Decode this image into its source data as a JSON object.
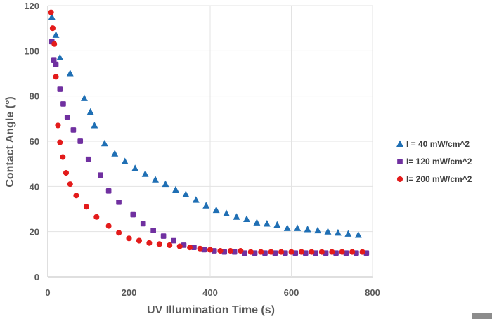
{
  "chart_data": {
    "type": "scatter",
    "title": "",
    "xlabel": "UV Illumination Time (s)",
    "ylabel": "Contact Angle (°)",
    "xlim": [
      0,
      800
    ],
    "ylim": [
      0,
      120
    ],
    "xticks": [
      0,
      200,
      400,
      600,
      800
    ],
    "yticks": [
      0,
      20,
      40,
      60,
      80,
      100,
      120
    ],
    "grid": true,
    "legend_position": "right",
    "series": [
      {
        "name": "I = 40 mW/cm^2",
        "marker": "triangle",
        "color": "#1f6fb4",
        "x": [
          10,
          20,
          30,
          55,
          90,
          105,
          115,
          140,
          165,
          190,
          215,
          240,
          265,
          290,
          315,
          340,
          365,
          390,
          415,
          440,
          465,
          490,
          515,
          540,
          565,
          590,
          615,
          640,
          665,
          690,
          715,
          740,
          765
        ],
        "y": [
          115,
          107,
          97,
          90,
          79,
          73,
          67,
          59,
          54.5,
          51,
          48,
          45.5,
          43,
          41,
          38.5,
          36.5,
          34,
          31.5,
          29.5,
          28,
          26.5,
          25.5,
          24,
          23.5,
          23,
          21.5,
          21.5,
          21,
          20.5,
          20,
          19.5,
          19,
          18.5
        ]
      },
      {
        "name": "I= 120 mW/cm^2",
        "marker": "square",
        "color": "#7030a0",
        "x": [
          10,
          15,
          20,
          30,
          38,
          48,
          63,
          80,
          100,
          130,
          150,
          175,
          210,
          235,
          260,
          285,
          310,
          335,
          360,
          385,
          410,
          435,
          460,
          485,
          510,
          535,
          560,
          585,
          610,
          635,
          660,
          685,
          710,
          735,
          760,
          785
        ],
        "y": [
          104,
          96,
          94,
          83,
          76.5,
          70.5,
          65,
          60,
          52,
          45,
          38,
          33,
          27.5,
          23.5,
          20.5,
          18,
          16,
          14,
          13,
          12,
          11.5,
          11,
          11,
          10.5,
          10.5,
          10.5,
          10.5,
          10.5,
          10.5,
          10.5,
          10.5,
          10.5,
          10.5,
          10.5,
          10.5,
          10.5
        ]
      },
      {
        "name": "I= 200 mW/cm^2",
        "marker": "circle",
        "color": "#e31b1b",
        "x": [
          8,
          12,
          16,
          20,
          25,
          30,
          37,
          45,
          55,
          70,
          95,
          120,
          150,
          175,
          200,
          225,
          250,
          275,
          300,
          325,
          350,
          375,
          400,
          425,
          450,
          475,
          500,
          525,
          550,
          575,
          600,
          625,
          650,
          675,
          700,
          725,
          750,
          775
        ],
        "y": [
          117,
          110,
          103,
          88.5,
          67,
          59.5,
          53,
          46,
          41,
          36,
          31,
          26.5,
          22.5,
          19.5,
          17,
          16,
          15,
          14.5,
          14,
          13.5,
          13,
          12.5,
          12,
          11.5,
          11.5,
          11.5,
          11,
          11,
          11,
          11,
          11,
          11,
          11,
          11,
          11,
          11,
          11,
          11
        ]
      }
    ]
  }
}
